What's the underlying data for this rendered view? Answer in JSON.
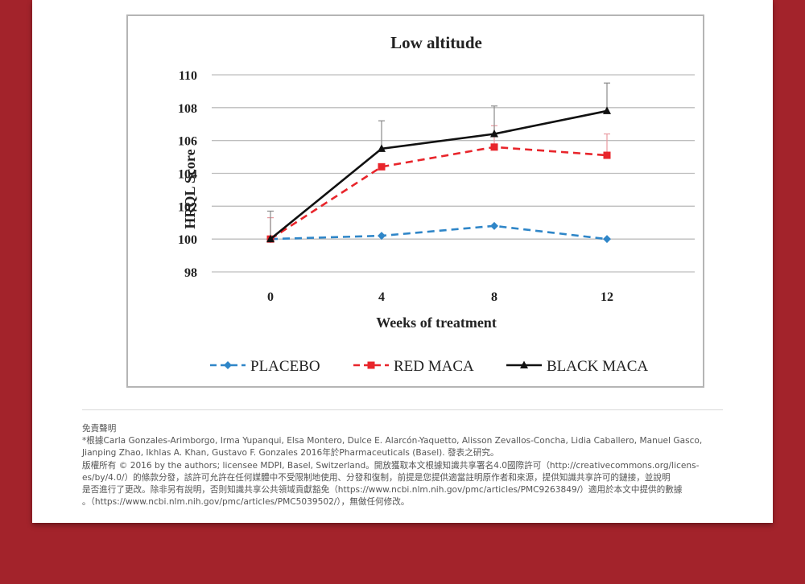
{
  "chart_data": {
    "type": "line",
    "title": "Low altitude",
    "xlabel": "Weeks of treatment",
    "ylabel": "HRQL Score",
    "x": [
      0,
      4,
      8,
      12
    ],
    "xticks": [
      "0",
      "4",
      "8",
      "12"
    ],
    "yticks": [
      "98",
      "100",
      "102",
      "104",
      "106",
      "108",
      "110"
    ],
    "ylim": [
      98,
      110
    ],
    "grid": true,
    "legend_position": "bottom",
    "series": [
      {
        "name": "PLACEBO",
        "color": "#2f86c8",
        "dash": "dashed",
        "marker": "diamond",
        "values": [
          100,
          100.2,
          100.8,
          100.0
        ],
        "error": [
          0,
          0,
          0,
          0
        ]
      },
      {
        "name": "RED MACA",
        "color": "#e8252b",
        "dash": "dashed",
        "marker": "square",
        "values": [
          100,
          104.4,
          105.6,
          105.1
        ],
        "error": [
          1.3,
          0,
          1.3,
          1.3
        ]
      },
      {
        "name": "BLACK MACA",
        "color": "#111111",
        "dash": "solid",
        "marker": "triangle",
        "values": [
          100,
          105.5,
          106.4,
          107.8
        ],
        "error": [
          1.7,
          1.7,
          1.7,
          1.7
        ]
      }
    ]
  },
  "disclaimer": {
    "heading": "免責聲明",
    "line1": "*根據Carla Gonzales-Arimborgo, Irma Yupanqui, Elsa Montero, Dulce E. Alarcón-Yaquetto, Alisson Zevallos-Concha, Lidia Caballero, Manuel Gasco,",
    "line2": "Jianping Zhao, Ikhlas A. Khan, Gustavo F. Gonzales 2016年於Pharmaceuticals (Basel). 發表之研究。",
    "line3": "版權所有 © 2016 by the authors; licensee MDPI, Basel, Switzerland。開放獲取本文根據知識共享署名4.0國際許可（http://creativecommons.org/licens-",
    "line4": "es/by/4.0/）的條款分發，該許可允許在任何媒體中不受限制地使用、分發和復制，前提是您提供適當註明原作者和來源，提供知識共享許可的鏈接，並說明",
    "line5": "是否進行了更改。除非另有說明，否則知識共享公共領域貢獻豁免（https://www.ncbi.nlm.nih.gov/pmc/articles/PMC9263849/）適用於本文中提供的數據",
    "line6": "。（https://www.ncbi.nlm.nih.gov/pmc/articles/PMC5039502/），無做任何修改。"
  }
}
